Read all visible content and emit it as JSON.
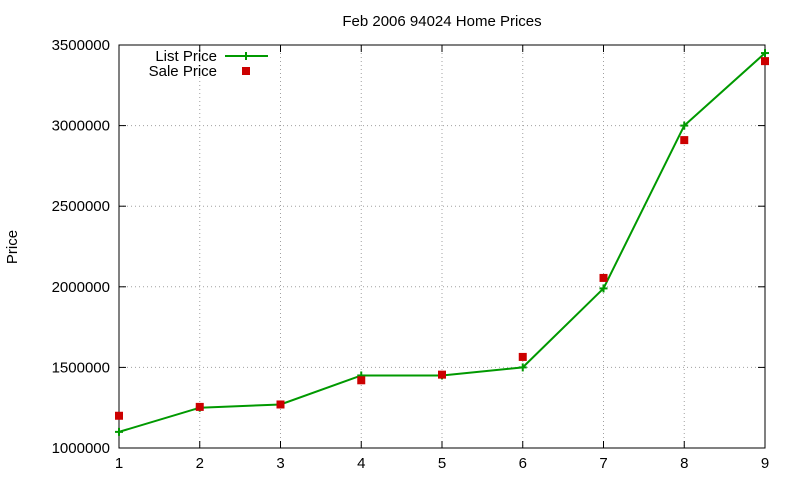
{
  "chart_data": {
    "type": "line",
    "title": "Feb 2006 94024 Home Prices",
    "xlabel": "",
    "ylabel": "Price",
    "xlim": [
      1,
      9
    ],
    "ylim": [
      1000000,
      3500000
    ],
    "xticks": [
      1,
      2,
      3,
      4,
      5,
      6,
      7,
      8,
      9
    ],
    "yticks": [
      1000000,
      1500000,
      2000000,
      2500000,
      3000000,
      3500000
    ],
    "grid": true,
    "legend_position": "top-left",
    "series": [
      {
        "name": "List Price",
        "style": "line-with-plus-markers",
        "color": "#009900",
        "x": [
          1,
          2,
          3,
          4,
          5,
          6,
          7,
          8,
          9
        ],
        "y": [
          1100000,
          1250000,
          1270000,
          1450000,
          1450000,
          1500000,
          1990000,
          3000000,
          3450000
        ]
      },
      {
        "name": "Sale Price",
        "style": "square-markers",
        "color": "#cc0000",
        "x": [
          1,
          2,
          3,
          4,
          5,
          6,
          7,
          8,
          9
        ],
        "y": [
          1200000,
          1255000,
          1270000,
          1420000,
          1455000,
          1565000,
          2055000,
          2910000,
          3400000
        ]
      }
    ]
  }
}
